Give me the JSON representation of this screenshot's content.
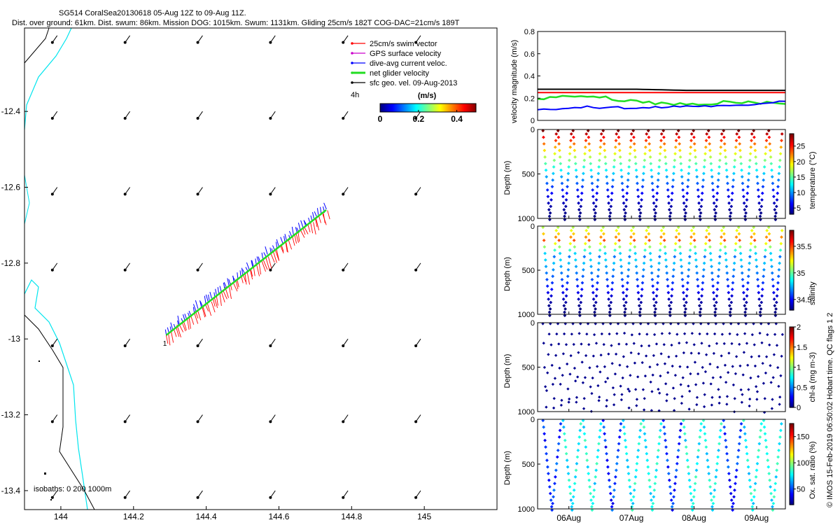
{
  "header": {
    "line1": "SG514 CoralSea20130618 05-Aug 12Z to 09-Aug 11Z.",
    "line2": "Dist. over ground: 61km. Dist. swum: 86km. Mission DOG: 1015km. Swum: 1131km. Gliding 25cm/s 182T COG-DAC=21cm/s 189T"
  },
  "credit": "© IMOS 15-Feb-2019 06:50:02 Hobart time. QC flags 1  2",
  "colors": {
    "swim_vector": "#ff0000",
    "gps_surface_velocity": "#cc00cc",
    "dive_avg_current": "#0000ff",
    "net_glider_velocity": "#22dd22",
    "sfc_geo_vel": "#000000",
    "isobath_0": "#000000",
    "isobath_200_1000": "#00e5ee"
  },
  "chart_data": [
    {
      "type": "scatter",
      "panel": "map",
      "xlim": [
        143.9,
        145.2
      ],
      "ylim": [
        -13.45,
        -12.18
      ],
      "xticks": [
        144,
        144.2,
        144.4,
        144.6,
        144.8,
        145
      ],
      "xtick_labels": [
        "144",
        "144.2",
        "144.4",
        "144.6",
        "144.8",
        "145"
      ],
      "yticks": [
        -12.4,
        -12.6,
        -12.8,
        -13,
        -13.2,
        -13.4
      ],
      "ytick_labels": [
        "-12.4",
        "-12.6",
        "-12.8",
        "-13",
        "-13.2",
        "-13.4"
      ],
      "legend": {
        "placement": "top-right",
        "entries": [
          "25cm/s swim vector",
          "GPS surface velocity",
          "dive-avg current veloc.",
          "net glider velocity",
          "sfc geo. vel. 09-Aug-2013"
        ]
      },
      "colorbar": {
        "label": "(m/s)",
        "ticks": [
          "0",
          "0.2",
          "0.4"
        ],
        "range": [
          0,
          0.5
        ],
        "scale_label": "4h"
      },
      "isobaths_label": "isobaths: 0   200   1000m",
      "track_start_label": "1",
      "glider_track": {
        "start": [
          144.29,
          -12.99
        ],
        "end": [
          144.73,
          -12.66
        ]
      },
      "current_field": {
        "lon": [
          143.99,
          144.19,
          144.39,
          144.59,
          144.79,
          144.99
        ],
        "lat": [
          -12.2,
          -12.4,
          -12.6,
          -12.8,
          -13.0,
          -13.2,
          -13.4
        ],
        "speed_m_s": 0.25,
        "direction_deg_true": 215
      }
    },
    {
      "type": "line",
      "panel": "velocity",
      "x": [
        "05-Aug 12Z",
        "06-Aug",
        "07-Aug",
        "08-Aug",
        "09-Aug",
        "09-Aug 11Z"
      ],
      "ylim": [
        0,
        0.8
      ],
      "yticks": [
        "0",
        "0.2",
        "0.4",
        "0.6",
        "0.8"
      ],
      "ylabel": "velocity magnitude (m/s)",
      "series": [
        {
          "color": "#000000",
          "values": [
            0.28,
            0.28,
            0.28,
            0.27,
            0.27,
            0.27
          ]
        },
        {
          "color": "#ff0000",
          "values": [
            0.25,
            0.25,
            0.25,
            0.25,
            0.25,
            0.25
          ]
        },
        {
          "color": "#22dd22",
          "values": [
            0.2,
            0.22,
            0.17,
            0.14,
            0.17,
            0.15
          ]
        },
        {
          "color": "#0000ff",
          "values": [
            0.1,
            0.12,
            0.11,
            0.13,
            0.13,
            0.18
          ]
        }
      ]
    },
    {
      "type": "scatter",
      "panel": "temperature",
      "ylabel": "Depth (m)",
      "yticks": [
        "0",
        "500",
        "1000"
      ],
      "ylim": [
        0,
        1000
      ],
      "colorbar_label": "temperature (°C)",
      "colorbar_ticks": [
        "5",
        "10",
        "15",
        "20",
        "25"
      ],
      "crange": [
        3,
        29
      ],
      "dives": 16
    },
    {
      "type": "scatter",
      "panel": "salinity",
      "ylabel": "Depth (m)",
      "yticks": [
        "0",
        "500",
        "1000"
      ],
      "ylim": [
        0,
        1000
      ],
      "colorbar_label": "salinity",
      "colorbar_ticks": [
        "34.5",
        "35",
        "35.5"
      ],
      "crange": [
        34.3,
        35.8
      ],
      "dives": 16
    },
    {
      "type": "scatter",
      "panel": "chla",
      "ylabel": "Depth (m)",
      "yticks": [
        "0",
        "500",
        "1000"
      ],
      "ylim": [
        0,
        1000
      ],
      "colorbar_label": "chl-a (mg m-3)",
      "colorbar_ticks": [
        "0",
        "0.5",
        "1",
        "1.5",
        "2"
      ],
      "crange": [
        0,
        2
      ],
      "dives": 32
    },
    {
      "type": "scatter",
      "panel": "oxygen",
      "ylabel": "Depth (m)",
      "yticks": [
        "0",
        "500",
        "1000"
      ],
      "ylim": [
        0,
        1000
      ],
      "colorbar_label": "Ox. sat. ratio (%)",
      "colorbar_ticks": [
        "50",
        "100",
        "150"
      ],
      "crange": [
        20,
        175
      ],
      "xtick_labels": [
        "06Aug",
        "07Aug",
        "08Aug",
        "09Aug"
      ],
      "dives": 12
    }
  ]
}
